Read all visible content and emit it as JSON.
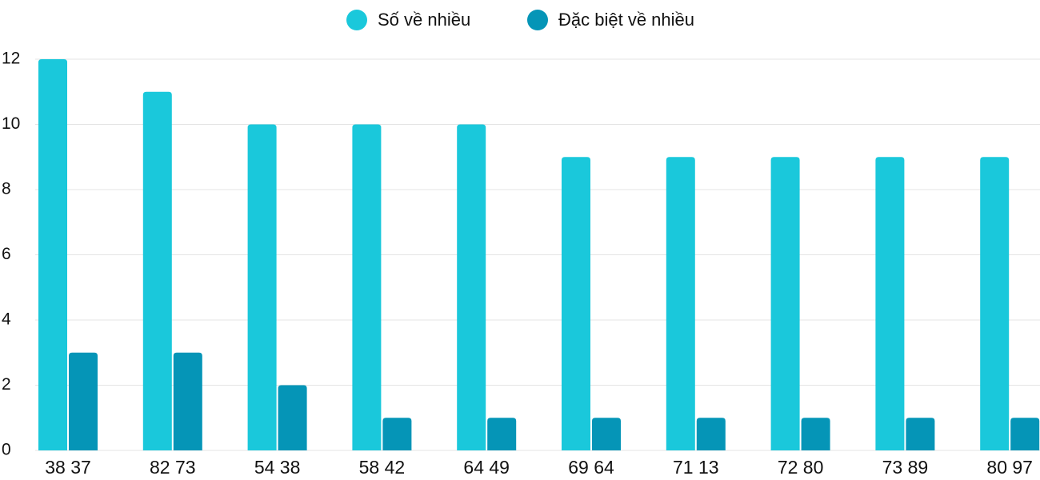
{
  "chart_data": {
    "type": "bar",
    "categories": [
      "38 37",
      "82 73",
      "54 38",
      "58 42",
      "64 49",
      "69 64",
      "71 13",
      "72 80",
      "73 89",
      "80 97"
    ],
    "series": [
      {
        "name": "Số về nhiều",
        "color": "#1ac8db",
        "values": [
          12,
          11,
          10,
          10,
          10,
          9,
          9,
          9,
          9,
          9
        ]
      },
      {
        "name": "Đặc biệt về nhiều",
        "color": "#0595b7",
        "values": [
          3,
          3,
          2,
          1,
          1,
          1,
          1,
          1,
          1,
          1
        ]
      }
    ],
    "ylim": [
      0,
      12
    ],
    "yticks": [
      0,
      2,
      4,
      6,
      8,
      10,
      12
    ],
    "grid": true,
    "legend": "top"
  }
}
